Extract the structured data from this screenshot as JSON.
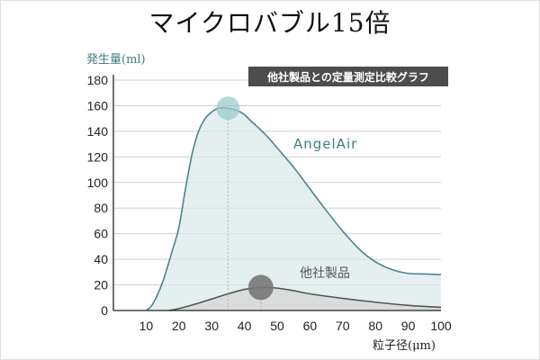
{
  "title": "マイクロバブル15倍",
  "legend_box": "他社製品との定量測定比較グラフ",
  "chart_data": {
    "type": "area",
    "ylabel": "発生量(ml)",
    "xlabel": "粒子径(μm)",
    "xlim": [
      0,
      100
    ],
    "ylim": [
      0,
      180
    ],
    "x_ticks": [
      10,
      20,
      30,
      40,
      50,
      60,
      70,
      80,
      90,
      100
    ],
    "y_ticks": [
      0,
      20,
      40,
      60,
      80,
      100,
      120,
      140,
      160,
      180
    ],
    "grid": true,
    "series": [
      {
        "name": "AngelAir",
        "color": "#4e858b",
        "fill": "#dbe9ea",
        "peak": {
          "x": 35,
          "y": 158
        },
        "x": [
          10,
          12,
          15,
          18,
          20,
          22,
          24,
          26,
          28,
          30,
          32,
          35,
          38,
          40,
          42,
          45,
          48,
          50,
          55,
          60,
          65,
          70,
          75,
          80,
          85,
          90,
          95,
          100
        ],
        "y": [
          0,
          5,
          22,
          47,
          65,
          95,
          122,
          140,
          150,
          155,
          158,
          158,
          156,
          153,
          148,
          141,
          133,
          127,
          112,
          95,
          78,
          62,
          48,
          38,
          32,
          29,
          28.5,
          28
        ]
      },
      {
        "name": "他社製品",
        "color": "#555555",
        "fill": "#d8d8d8",
        "peak": {
          "x": 45,
          "y": 18
        },
        "x": [
          17,
          20,
          25,
          30,
          35,
          40,
          45,
          50,
          55,
          60,
          70,
          80,
          90,
          100
        ],
        "y": [
          0,
          1.5,
          5,
          9,
          13,
          16.5,
          18,
          17.5,
          15.5,
          13,
          9.5,
          6.5,
          4,
          2.5
        ]
      }
    ]
  }
}
